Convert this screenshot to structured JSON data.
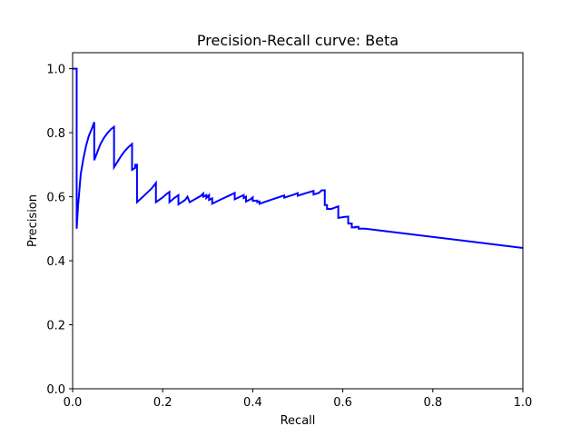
{
  "chart_data": {
    "type": "line",
    "title": "Precision-Recall curve: Beta",
    "xlabel": "Recall",
    "ylabel": "Precision",
    "xlim": [
      0.0,
      1.0
    ],
    "ylim": [
      0.0,
      1.05
    ],
    "xticks": [
      0.0,
      0.2,
      0.4,
      0.6,
      0.8,
      1.0
    ],
    "xtick_labels": [
      "0.0",
      "0.2",
      "0.4",
      "0.6",
      "0.8",
      "1.0"
    ],
    "yticks": [
      0.0,
      0.2,
      0.4,
      0.6,
      0.8,
      1.0
    ],
    "ytick_labels": [
      "0.0",
      "0.2",
      "0.4",
      "0.6",
      "0.8",
      "1.0"
    ],
    "grid": false,
    "legend": false,
    "series": [
      {
        "color": "#0000ff",
        "x": [
          0.0,
          0.006,
          0.006,
          0.009,
          0.009,
          0.012,
          0.018,
          0.024,
          0.03,
          0.036,
          0.042,
          0.048,
          0.048,
          0.055,
          0.062,
          0.07,
          0.078,
          0.086,
          0.092,
          0.092,
          0.1,
          0.108,
          0.116,
          0.124,
          0.132,
          0.132,
          0.139,
          0.139,
          0.143,
          0.143,
          0.16,
          0.175,
          0.185,
          0.185,
          0.2,
          0.21,
          0.215,
          0.215,
          0.225,
          0.235,
          0.235,
          0.25,
          0.255,
          0.26,
          0.26,
          0.275,
          0.285,
          0.29,
          0.29,
          0.297,
          0.297,
          0.303,
          0.303,
          0.31,
          0.31,
          0.33,
          0.35,
          0.36,
          0.36,
          0.375,
          0.38,
          0.38,
          0.385,
          0.385,
          0.395,
          0.4,
          0.4,
          0.41,
          0.41,
          0.415,
          0.415,
          0.44,
          0.47,
          0.47,
          0.49,
          0.5,
          0.5,
          0.52,
          0.535,
          0.535,
          0.547,
          0.553,
          0.553,
          0.56,
          0.56,
          0.565,
          0.565,
          0.575,
          0.59,
          0.59,
          0.605,
          0.612,
          0.612,
          0.62,
          0.62,
          0.628,
          0.628,
          0.635,
          0.635,
          0.642,
          0.642,
          0.65,
          1.0
        ],
        "y": [
          1.0,
          1.0,
          1.0,
          1.0,
          0.5,
          0.57,
          0.67,
          0.72,
          0.76,
          0.79,
          0.81,
          0.833,
          0.714,
          0.74,
          0.765,
          0.785,
          0.8,
          0.812,
          0.818,
          0.692,
          0.71,
          0.728,
          0.743,
          0.755,
          0.765,
          0.684,
          0.69,
          0.7,
          0.7,
          0.583,
          0.605,
          0.625,
          0.643,
          0.583,
          0.598,
          0.61,
          0.615,
          0.583,
          0.595,
          0.605,
          0.576,
          0.59,
          0.6,
          0.583,
          0.583,
          0.595,
          0.603,
          0.61,
          0.6,
          0.605,
          0.596,
          0.605,
          0.59,
          0.595,
          0.578,
          0.592,
          0.605,
          0.612,
          0.592,
          0.602,
          0.605,
          0.596,
          0.6,
          0.585,
          0.592,
          0.598,
          0.587,
          0.588,
          0.583,
          0.585,
          0.578,
          0.59,
          0.604,
          0.597,
          0.606,
          0.611,
          0.603,
          0.612,
          0.618,
          0.607,
          0.612,
          0.62,
          0.62,
          0.62,
          0.574,
          0.574,
          0.562,
          0.562,
          0.57,
          0.534,
          0.537,
          0.538,
          0.516,
          0.516,
          0.504,
          0.504,
          0.506,
          0.506,
          0.5,
          0.5,
          0.5,
          0.5,
          0.44
        ]
      }
    ]
  }
}
